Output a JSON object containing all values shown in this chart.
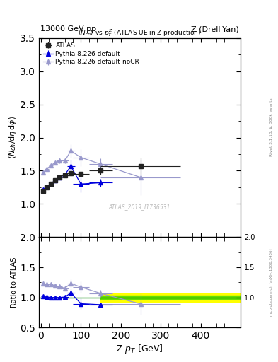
{
  "title_left": "13000 GeV pp",
  "title_right": "Z (Drell-Yan)",
  "plot_title": "$\\langle N_{ch}\\rangle$ vs $p^{Z}_{T}$ (ATLAS UE in Z production)",
  "right_label": "Rivet 3.1.10, ≥ 300k events",
  "watermark": "ATLAS_2019_I1736531",
  "inspire": "mcplots.cern.ch [arXiv:1306.3436]",
  "ylabel_main": "$\\langle N_{ch}/\\mathrm{d}\\eta\\,\\mathrm{d}\\phi\\rangle$",
  "ylabel_ratio": "Ratio to ATLAS",
  "xlabel": "Z $p_{T}$ [GeV]",
  "ylim_main": [
    0.5,
    3.5
  ],
  "ylim_ratio": [
    0.5,
    2.0
  ],
  "xlim": [
    -5,
    500
  ],
  "yticks_main": [
    1.0,
    1.5,
    2.0,
    2.5,
    3.0,
    3.5
  ],
  "yticks_ratio": [
    0.5,
    1.0,
    1.5,
    2.0
  ],
  "xticks": [
    0,
    100,
    200,
    300,
    400
  ],
  "atlas_x": [
    5,
    15,
    25,
    35,
    47,
    60,
    75,
    100,
    150,
    250
  ],
  "atlas_y": [
    1.2,
    1.25,
    1.3,
    1.36,
    1.4,
    1.43,
    1.46,
    1.45,
    1.5,
    1.57
  ],
  "atlas_yerr": [
    0.025,
    0.025,
    0.025,
    0.03,
    0.03,
    0.03,
    0.035,
    0.04,
    0.06,
    0.13
  ],
  "atlas_xerr_lo": [
    5,
    5,
    5,
    5,
    7,
    10,
    10,
    20,
    30,
    100
  ],
  "atlas_xerr_hi": [
    5,
    5,
    5,
    5,
    7,
    10,
    10,
    20,
    30,
    100
  ],
  "pythia_default_x": [
    5,
    15,
    25,
    35,
    47,
    60,
    75,
    100,
    150
  ],
  "pythia_default_y": [
    1.22,
    1.26,
    1.3,
    1.36,
    1.4,
    1.44,
    1.57,
    1.3,
    1.32
  ],
  "pythia_default_yerr": [
    0.01,
    0.01,
    0.01,
    0.015,
    0.015,
    0.02,
    0.09,
    0.13,
    0.06
  ],
  "pythia_default_xerr_lo": [
    5,
    5,
    5,
    5,
    7,
    10,
    10,
    20,
    30
  ],
  "pythia_default_xerr_hi": [
    5,
    5,
    5,
    5,
    7,
    10,
    10,
    20,
    30
  ],
  "pythia_nocr_x": [
    5,
    15,
    25,
    35,
    47,
    60,
    75,
    100,
    150,
    250
  ],
  "pythia_nocr_y": [
    1.47,
    1.53,
    1.58,
    1.62,
    1.65,
    1.65,
    1.8,
    1.7,
    1.6,
    1.4
  ],
  "pythia_nocr_yerr": [
    0.02,
    0.02,
    0.025,
    0.03,
    0.035,
    0.04,
    0.1,
    0.13,
    0.09,
    0.27
  ],
  "pythia_nocr_xerr_lo": [
    5,
    5,
    5,
    5,
    7,
    10,
    10,
    20,
    30,
    100
  ],
  "pythia_nocr_xerr_hi": [
    5,
    5,
    5,
    5,
    7,
    10,
    10,
    20,
    30,
    100
  ],
  "atlas_color": "#222222",
  "pythia_default_color": "#0000dd",
  "pythia_nocr_color": "#9999cc",
  "band_yellow": "#ffff00",
  "band_green": "#66dd00",
  "band_line_color": "#008800",
  "ratio_band_yellow_lo": 0.93,
  "ratio_band_yellow_hi": 1.07,
  "ratio_band_green_lo": 0.97,
  "ratio_band_green_hi": 1.03,
  "ratio_band_xstart": 150
}
